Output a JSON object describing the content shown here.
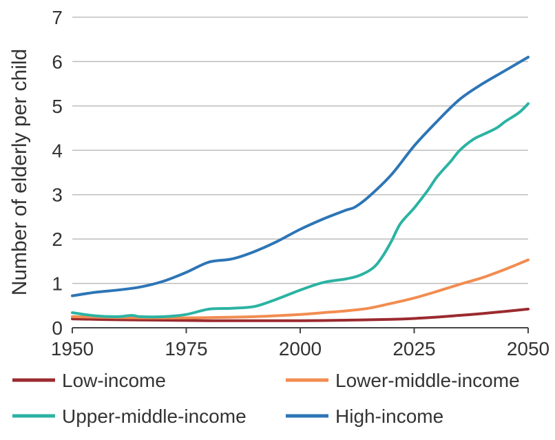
{
  "chart_data": {
    "type": "line",
    "title": "",
    "xlabel": "",
    "ylabel": "Number of elderly per child",
    "xlim": [
      1950,
      2050
    ],
    "ylim": [
      0,
      7
    ],
    "xticks": [
      1950,
      1975,
      2000,
      2025,
      2050
    ],
    "yticks": [
      0,
      1,
      2,
      3,
      4,
      5,
      6,
      7
    ],
    "grid": "horizontal",
    "legend_position": "bottom",
    "series": [
      {
        "name": "Low-income",
        "color": "#9b2a2f",
        "x": [
          1950,
          1960,
          1970,
          1980,
          1990,
          2000,
          2010,
          2020,
          2025,
          2030,
          2035,
          2040,
          2045,
          2050
        ],
        "y": [
          0.2,
          0.18,
          0.17,
          0.16,
          0.16,
          0.16,
          0.17,
          0.19,
          0.21,
          0.24,
          0.28,
          0.32,
          0.37,
          0.42
        ]
      },
      {
        "name": "Lower-middle-income",
        "color": "#f28c50",
        "x": [
          1950,
          1960,
          1970,
          1980,
          1990,
          2000,
          2005,
          2010,
          2015,
          2020,
          2025,
          2030,
          2035,
          2040,
          2045,
          2050
        ],
        "y": [
          0.25,
          0.23,
          0.22,
          0.23,
          0.25,
          0.3,
          0.34,
          0.38,
          0.44,
          0.55,
          0.67,
          0.82,
          0.98,
          1.13,
          1.32,
          1.53
        ]
      },
      {
        "name": "Upper-middle-income",
        "color": "#2bb3a3",
        "x": [
          1950,
          1955,
          1960,
          1963,
          1965,
          1970,
          1975,
          1980,
          1985,
          1990,
          1995,
          2000,
          2005,
          2010,
          2013,
          2016,
          2018,
          2020,
          2022,
          2025,
          2028,
          2030,
          2033,
          2035,
          2038,
          2040,
          2043,
          2045,
          2048,
          2050
        ],
        "y": [
          0.34,
          0.27,
          0.25,
          0.28,
          0.25,
          0.25,
          0.3,
          0.42,
          0.44,
          0.48,
          0.65,
          0.85,
          1.02,
          1.1,
          1.18,
          1.35,
          1.6,
          1.95,
          2.35,
          2.7,
          3.1,
          3.4,
          3.75,
          4.0,
          4.25,
          4.35,
          4.5,
          4.65,
          4.85,
          5.05
        ]
      },
      {
        "name": "High-income",
        "color": "#2d75b6",
        "x": [
          1950,
          1955,
          1960,
          1965,
          1970,
          1975,
          1980,
          1985,
          1990,
          1995,
          2000,
          2005,
          2010,
          2012,
          2015,
          2020,
          2025,
          2030,
          2035,
          2040,
          2045,
          2050
        ],
        "y": [
          0.72,
          0.8,
          0.85,
          0.92,
          1.05,
          1.25,
          1.48,
          1.55,
          1.72,
          1.95,
          2.22,
          2.45,
          2.65,
          2.72,
          2.95,
          3.45,
          4.1,
          4.65,
          5.15,
          5.5,
          5.8,
          6.1
        ]
      }
    ]
  }
}
